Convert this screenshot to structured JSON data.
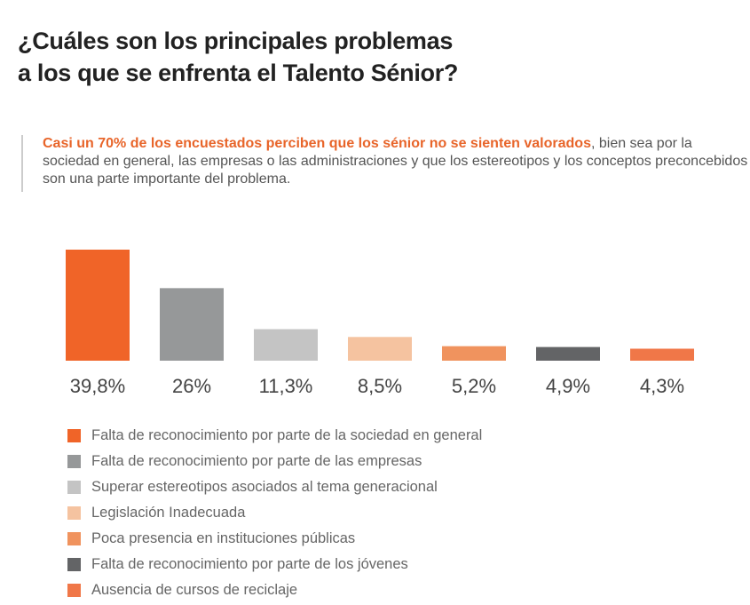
{
  "title": [
    "¿Cuáles son los principales problemas",
    "a los que se enfrenta el Talento Sénior?"
  ],
  "quote": {
    "highlight": "Casi un 70% de los encuestados perciben que los sénior no se sienten valorados",
    "rest": ", bien sea por la sociedad en general, las empresas o las administraciones  y que los estereotipos y los conceptos preconcebidos son una parte importante del problema."
  },
  "chart_data": {
    "type": "bar",
    "categories": [
      "Falta de reconocimiento por parte de la sociedad en general",
      "Falta de reconocimiento por parte de las empresas",
      "Superar estereotipos asociados al tema generacional",
      "Legislación Inadecuada",
      "Poca presencia en instituciones públicas",
      "Falta de reconocimiento por parte de los jóvenes",
      "Ausencia de cursos de reciclaje"
    ],
    "values": [
      39.8,
      26,
      11.3,
      8.5,
      5.2,
      4.9,
      4.3
    ],
    "data_labels": [
      "39,8%",
      "26%",
      "11,3%",
      "8,5%",
      "5,2%",
      "4,9%",
      "4,3%"
    ],
    "colors": [
      "#f06428",
      "#969899",
      "#c4c4c4",
      "#f5c3a0",
      "#f0935e",
      "#636466",
      "#f07748"
    ],
    "legend_position": "bottom",
    "grid": false
  }
}
